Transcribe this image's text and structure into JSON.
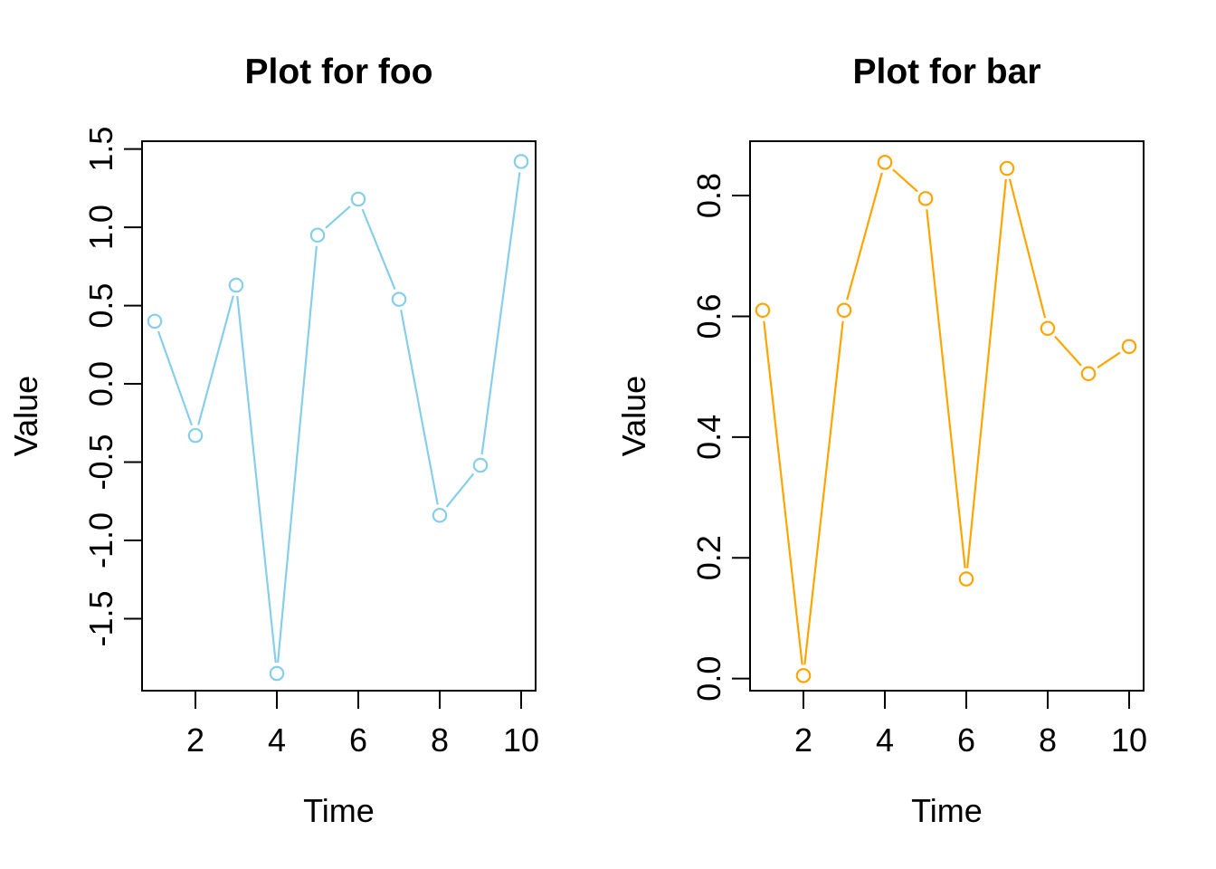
{
  "figure": {
    "background": "#ffffff",
    "panel_count": 2
  },
  "chart_data": [
    {
      "type": "line",
      "title": "Plot for foo",
      "xlabel": "Time",
      "ylabel": "Value",
      "marker": "open-circle",
      "line_style": "solid",
      "grid": false,
      "legend_position": "none",
      "color": "#87CEEB",
      "x": [
        1,
        2,
        3,
        4,
        5,
        6,
        7,
        8,
        9,
        10
      ],
      "values": [
        0.4,
        -0.33,
        0.63,
        -1.85,
        0.95,
        1.18,
        0.54,
        -0.84,
        -0.52,
        1.42
      ],
      "x_tick_values": [
        2,
        4,
        6,
        8,
        10
      ],
      "x_tick_labels": [
        "2",
        "4",
        "6",
        "8",
        "10"
      ],
      "y_tick_values": [
        -1.5,
        -1.0,
        -0.5,
        0.0,
        0.5,
        1.0,
        1.5
      ],
      "y_tick_labels": [
        "-1.5",
        "-1.0",
        "-0.5",
        "0.0",
        "0.5",
        "1.0",
        "1.5"
      ],
      "xlim": [
        0.69,
        10.36
      ],
      "ylim": [
        -1.96,
        1.55
      ]
    },
    {
      "type": "line",
      "title": "Plot for bar",
      "xlabel": "Time",
      "ylabel": "Value",
      "marker": "open-circle",
      "line_style": "solid",
      "grid": false,
      "legend_position": "none",
      "color": "#FFA500",
      "x": [
        1,
        2,
        3,
        4,
        5,
        6,
        7,
        8,
        9,
        10
      ],
      "values": [
        0.61,
        0.005,
        0.61,
        0.855,
        0.795,
        0.165,
        0.845,
        0.58,
        0.505,
        0.55
      ],
      "x_tick_values": [
        2,
        4,
        6,
        8,
        10
      ],
      "x_tick_labels": [
        "2",
        "4",
        "6",
        "8",
        "10"
      ],
      "y_tick_values": [
        0.0,
        0.2,
        0.4,
        0.6,
        0.8
      ],
      "y_tick_labels": [
        "0.0",
        "0.2",
        "0.4",
        "0.6",
        "0.8"
      ],
      "xlim": [
        0.69,
        10.36
      ],
      "ylim": [
        -0.02,
        0.89
      ]
    }
  ]
}
